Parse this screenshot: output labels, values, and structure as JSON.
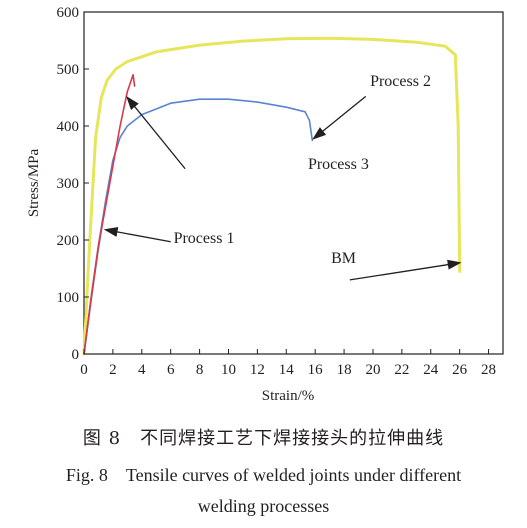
{
  "chart_data": {
    "type": "line",
    "xlabel": "Strain/%",
    "ylabel": "Stress/MPa",
    "xlim": [
      0,
      29
    ],
    "ylim": [
      0,
      600
    ],
    "xticks": [
      0,
      2,
      4,
      6,
      8,
      10,
      12,
      14,
      16,
      18,
      20,
      22,
      24,
      26,
      28
    ],
    "yticks": [
      0,
      100,
      200,
      300,
      400,
      500,
      600
    ],
    "grid": false,
    "series": [
      {
        "name": "BM",
        "color": "#e6e65a",
        "points": [
          [
            0,
            0
          ],
          [
            0.4,
            200
          ],
          [
            0.8,
            380
          ],
          [
            1.2,
            450
          ],
          [
            1.6,
            480
          ],
          [
            2.2,
            500
          ],
          [
            3,
            513
          ],
          [
            5,
            530
          ],
          [
            8,
            542
          ],
          [
            11,
            549
          ],
          [
            14,
            553
          ],
          [
            17,
            554
          ],
          [
            20,
            552
          ],
          [
            23,
            547
          ],
          [
            25,
            540
          ],
          [
            25.7,
            525
          ],
          [
            25.9,
            400
          ],
          [
            26,
            145
          ]
        ]
      },
      {
        "name": "Process 1",
        "color": "#7a7a7a",
        "points": [
          [
            0,
            0
          ],
          [
            0.5,
            95
          ],
          [
            1,
            185
          ],
          [
            1.5,
            265
          ]
        ]
      },
      {
        "name": "Process 2",
        "color": "#5b84d0",
        "points": [
          [
            0,
            0
          ],
          [
            0.5,
            100
          ],
          [
            1,
            190
          ],
          [
            1.5,
            270
          ],
          [
            2,
            340
          ],
          [
            2.5,
            380
          ],
          [
            3,
            400
          ],
          [
            4,
            420
          ],
          [
            6,
            440
          ],
          [
            8,
            447
          ],
          [
            10,
            447
          ],
          [
            12,
            442
          ],
          [
            14,
            433
          ],
          [
            15.3,
            425
          ],
          [
            15.6,
            410
          ],
          [
            15.8,
            375
          ]
        ]
      },
      {
        "name": "Process 3",
        "color": "#d93a4a",
        "points": [
          [
            0,
            0
          ],
          [
            0.5,
            100
          ],
          [
            1,
            190
          ],
          [
            1.5,
            260
          ],
          [
            2,
            330
          ],
          [
            2.5,
            400
          ],
          [
            3,
            460
          ],
          [
            3.4,
            490
          ],
          [
            3.5,
            470
          ]
        ]
      }
    ],
    "annotations": [
      {
        "text": "Process 2",
        "x": 19.8,
        "y": 470,
        "arrow_to": [
          15.9,
          378
        ],
        "arrow_from": [
          19.5,
          452
        ]
      },
      {
        "text": "Process 3",
        "x": 15.5,
        "y": 325,
        "arrow_to": [
          3,
          450
        ],
        "arrow_from": [
          7,
          325
        ]
      },
      {
        "text": "Process 1",
        "x": 6.2,
        "y": 195,
        "arrow_to": [
          1.5,
          218
        ],
        "arrow_from": [
          6,
          197
        ]
      },
      {
        "text": "BM",
        "x": 17.1,
        "y": 160,
        "arrow_to": [
          26,
          160
        ],
        "arrow_from": [
          18.4,
          130
        ]
      }
    ]
  },
  "caption": {
    "cn": "图 8　不同焊接工艺下焊接接头的拉伸曲线",
    "en_line1": "Fig. 8　Tensile curves of welded joints under different",
    "en_line2": "welding processes"
  }
}
